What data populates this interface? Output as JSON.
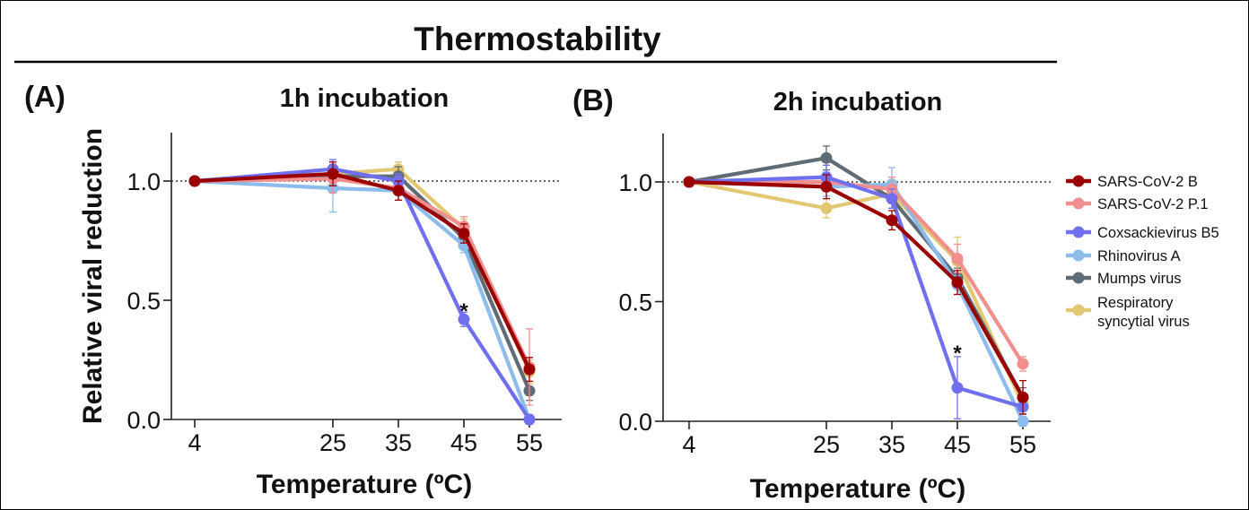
{
  "figure": {
    "title": "Thermostability"
  },
  "legend": {
    "items": [
      {
        "name": "SARS-CoV-2 B",
        "color": "#9B0000"
      },
      {
        "name": "SARS-CoV-2 P.1",
        "color": "#F28E8E"
      },
      {
        "name": "Coxsackievirus B5",
        "color": "#6F6FF0"
      },
      {
        "name": "Rhinovirus A",
        "color": "#8CBCEC"
      },
      {
        "name": "Mumps virus",
        "color": "#5F6B75"
      },
      {
        "name": "Respiratory syncytial virus",
        "color": "#E2C873"
      }
    ]
  },
  "chart_data": [
    {
      "type": "line",
      "panel_label": "(A)",
      "title": "1h incubation",
      "xlabel": "Temperature (ºC)",
      "ylabel": "Relative viral reduction",
      "x": [
        4,
        25,
        35,
        45,
        55
      ],
      "x_tick_labels": [
        "4",
        "25",
        "35",
        "45",
        "55"
      ],
      "y_ticks": [
        0.0,
        0.5,
        1.0
      ],
      "y_tick_labels": [
        "0.0",
        "0.5",
        "1.0"
      ],
      "ylim": [
        0,
        1.2
      ],
      "reference_line": 1.0,
      "annotation": {
        "text": "*",
        "x": 45,
        "y": 0.47
      },
      "series": [
        {
          "name": "Respiratory syncytial virus",
          "values": [
            1.0,
            1.03,
            1.05,
            0.8,
            0.2
          ],
          "errors": [
            0,
            0.04,
            0.03,
            0.04,
            0.05
          ]
        },
        {
          "name": "Mumps virus",
          "values": [
            1.0,
            1.02,
            1.02,
            0.76,
            0.12
          ],
          "errors": [
            0,
            0.05,
            0.04,
            0.03,
            0.04
          ]
        },
        {
          "name": "Rhinovirus A",
          "values": [
            1.0,
            0.97,
            0.96,
            0.73,
            0.0
          ],
          "errors": [
            0,
            0.1,
            0.04,
            0.03,
            0.02
          ]
        },
        {
          "name": "SARS-CoV-2 P.1",
          "values": [
            1.0,
            1.01,
            0.97,
            0.81,
            0.22
          ],
          "errors": [
            0,
            0.06,
            0.05,
            0.04,
            0.16
          ]
        },
        {
          "name": "Coxsackievirus B5",
          "values": [
            1.0,
            1.05,
            1.0,
            0.42,
            0.0
          ],
          "errors": [
            0,
            0.04,
            0.03,
            0.03,
            0.02
          ]
        },
        {
          "name": "SARS-CoV-2 B",
          "values": [
            1.0,
            1.03,
            0.96,
            0.78,
            0.21
          ],
          "errors": [
            0,
            0.05,
            0.04,
            0.04,
            0.05
          ]
        }
      ]
    },
    {
      "type": "line",
      "panel_label": "(B)",
      "title": "2h incubation",
      "xlabel": "Temperature (ºC)",
      "ylabel": "",
      "x": [
        4,
        25,
        35,
        45,
        55
      ],
      "x_tick_labels": [
        "4",
        "25",
        "35",
        "45",
        "55"
      ],
      "y_ticks": [
        0.0,
        0.5,
        1.0
      ],
      "y_tick_labels": [
        "0.0",
        "0.5",
        "1.0"
      ],
      "ylim": [
        0,
        1.2
      ],
      "reference_line": 1.0,
      "annotation": {
        "text": "*",
        "x": 45,
        "y": 0.3
      },
      "series": [
        {
          "name": "Respiratory syncytial virus",
          "values": [
            1.0,
            0.89,
            0.95,
            0.67,
            0.07
          ],
          "errors": [
            0,
            0.04,
            0.04,
            0.1,
            0.04
          ]
        },
        {
          "name": "Mumps virus",
          "values": [
            1.0,
            1.1,
            0.93,
            0.6,
            0.1
          ],
          "errors": [
            0,
            0.05,
            0.04,
            0.04,
            0.04
          ]
        },
        {
          "name": "Rhinovirus A",
          "values": [
            1.0,
            0.98,
            0.99,
            0.57,
            0.0
          ],
          "errors": [
            0,
            0.04,
            0.07,
            0.04,
            0.02
          ]
        },
        {
          "name": "SARS-CoV-2 P.1",
          "values": [
            1.0,
            1.0,
            0.97,
            0.68,
            0.24
          ],
          "errors": [
            0,
            0.04,
            0.05,
            0.06,
            0.03
          ]
        },
        {
          "name": "Coxsackievirus B5",
          "values": [
            1.0,
            1.02,
            0.93,
            0.14,
            0.06
          ],
          "errors": [
            0,
            0.05,
            0.04,
            0.13,
            0.03
          ]
        },
        {
          "name": "SARS-CoV-2 B",
          "values": [
            1.0,
            0.98,
            0.84,
            0.58,
            0.1
          ],
          "errors": [
            0,
            0.05,
            0.04,
            0.05,
            0.07
          ]
        }
      ]
    }
  ]
}
